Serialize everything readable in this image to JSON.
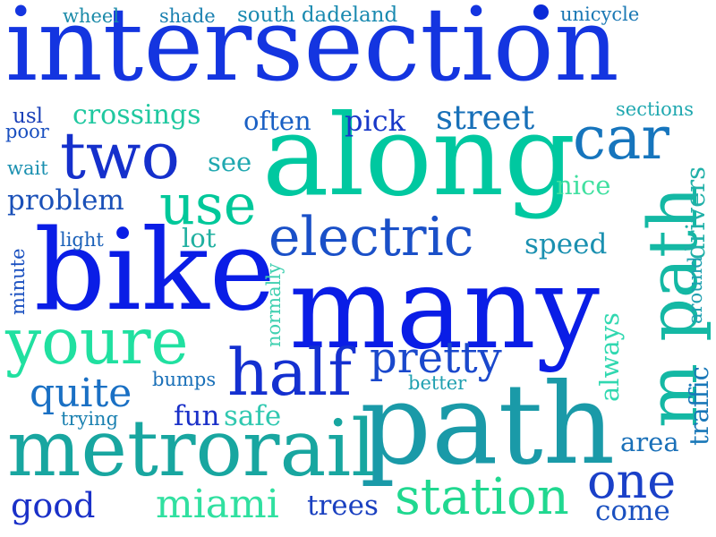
{
  "words": {
    "intersection": {
      "text": "intersection",
      "color": "#1435e0"
    },
    "along": {
      "text": "along",
      "color": "#00c8a0"
    },
    "many": {
      "text": "many",
      "color": "#0a1de6"
    },
    "bike": {
      "text": "bike",
      "color": "#0a1de6"
    },
    "path_big": {
      "text": "path",
      "color": "#1a9aa8"
    },
    "metrorail": {
      "text": "metrorail",
      "color": "#18a6a0"
    },
    "m_path": {
      "text": "m path",
      "color": "#14b8a4"
    },
    "two": {
      "text": "two",
      "color": "#1530cc"
    },
    "car": {
      "text": "car",
      "color": "#1675bd"
    },
    "use": {
      "text": "use",
      "color": "#00c89a"
    },
    "electric": {
      "text": "electric",
      "color": "#1a50c8"
    },
    "youre": {
      "text": "youre",
      "color": "#20e0a0"
    },
    "half": {
      "text": "half",
      "color": "#1430d0"
    },
    "pretty": {
      "text": "pretty",
      "color": "#1a48cc"
    },
    "station": {
      "text": "station",
      "color": "#20d890"
    },
    "one": {
      "text": "one",
      "color": "#1a40c8"
    },
    "quite": {
      "text": "quite",
      "color": "#1a70c4"
    },
    "street": {
      "text": "street",
      "color": "#1870b8"
    },
    "crossings": {
      "text": "crossings",
      "color": "#20c8a0"
    },
    "often": {
      "text": "often",
      "color": "#1a60c4"
    },
    "pick": {
      "text": "pick",
      "color": "#1838c8"
    },
    "south_dadeland": {
      "text": "south dadeland",
      "color": "#1a8ab0"
    },
    "wheel": {
      "text": "wheel",
      "color": "#1a8aa8"
    },
    "shade": {
      "text": "shade",
      "color": "#1a80b0"
    },
    "unicycle": {
      "text": "unicycle",
      "color": "#1a78b4"
    },
    "usl": {
      "text": "usl",
      "color": "#1a40b8"
    },
    "poor": {
      "text": "poor",
      "color": "#1a50c0"
    },
    "sections": {
      "text": "sections",
      "color": "#20a8b0"
    },
    "see": {
      "text": "see",
      "color": "#20a8b0"
    },
    "nice": {
      "text": "nice",
      "color": "#40e0a0"
    },
    "wait": {
      "text": "wait",
      "color": "#1a90b0"
    },
    "problem": {
      "text": "problem",
      "color": "#1a50b8"
    },
    "drivers": {
      "text": "drivers",
      "color": "#20b0a8"
    },
    "light": {
      "text": "light",
      "color": "#1a60b8"
    },
    "lot": {
      "text": "lot",
      "color": "#20b0a0"
    },
    "speed": {
      "text": "speed",
      "color": "#1a90b0"
    },
    "minute": {
      "text": "minute",
      "color": "#1a50c0"
    },
    "normally": {
      "text": "normally",
      "color": "#40d0b0"
    },
    "around": {
      "text": "around",
      "color": "#20a0b0"
    },
    "always": {
      "text": "always",
      "color": "#30d8b0"
    },
    "bumps": {
      "text": "bumps",
      "color": "#1a70b8"
    },
    "better": {
      "text": "better",
      "color": "#20a0b0"
    },
    "traffic": {
      "text": "traffic",
      "color": "#1a78b8"
    },
    "trying": {
      "text": "trying",
      "color": "#1a80b0"
    },
    "fun": {
      "text": "fun",
      "color": "#1a30c8"
    },
    "safe": {
      "text": "safe",
      "color": "#30c8b0"
    },
    "area": {
      "text": "area",
      "color": "#1a70b8"
    },
    "good": {
      "text": "good",
      "color": "#1a30c8"
    },
    "miami": {
      "text": "miami",
      "color": "#30e0a0"
    },
    "trees": {
      "text": "trees",
      "color": "#1a40c0"
    },
    "come": {
      "text": "come",
      "color": "#1a50c0"
    }
  }
}
